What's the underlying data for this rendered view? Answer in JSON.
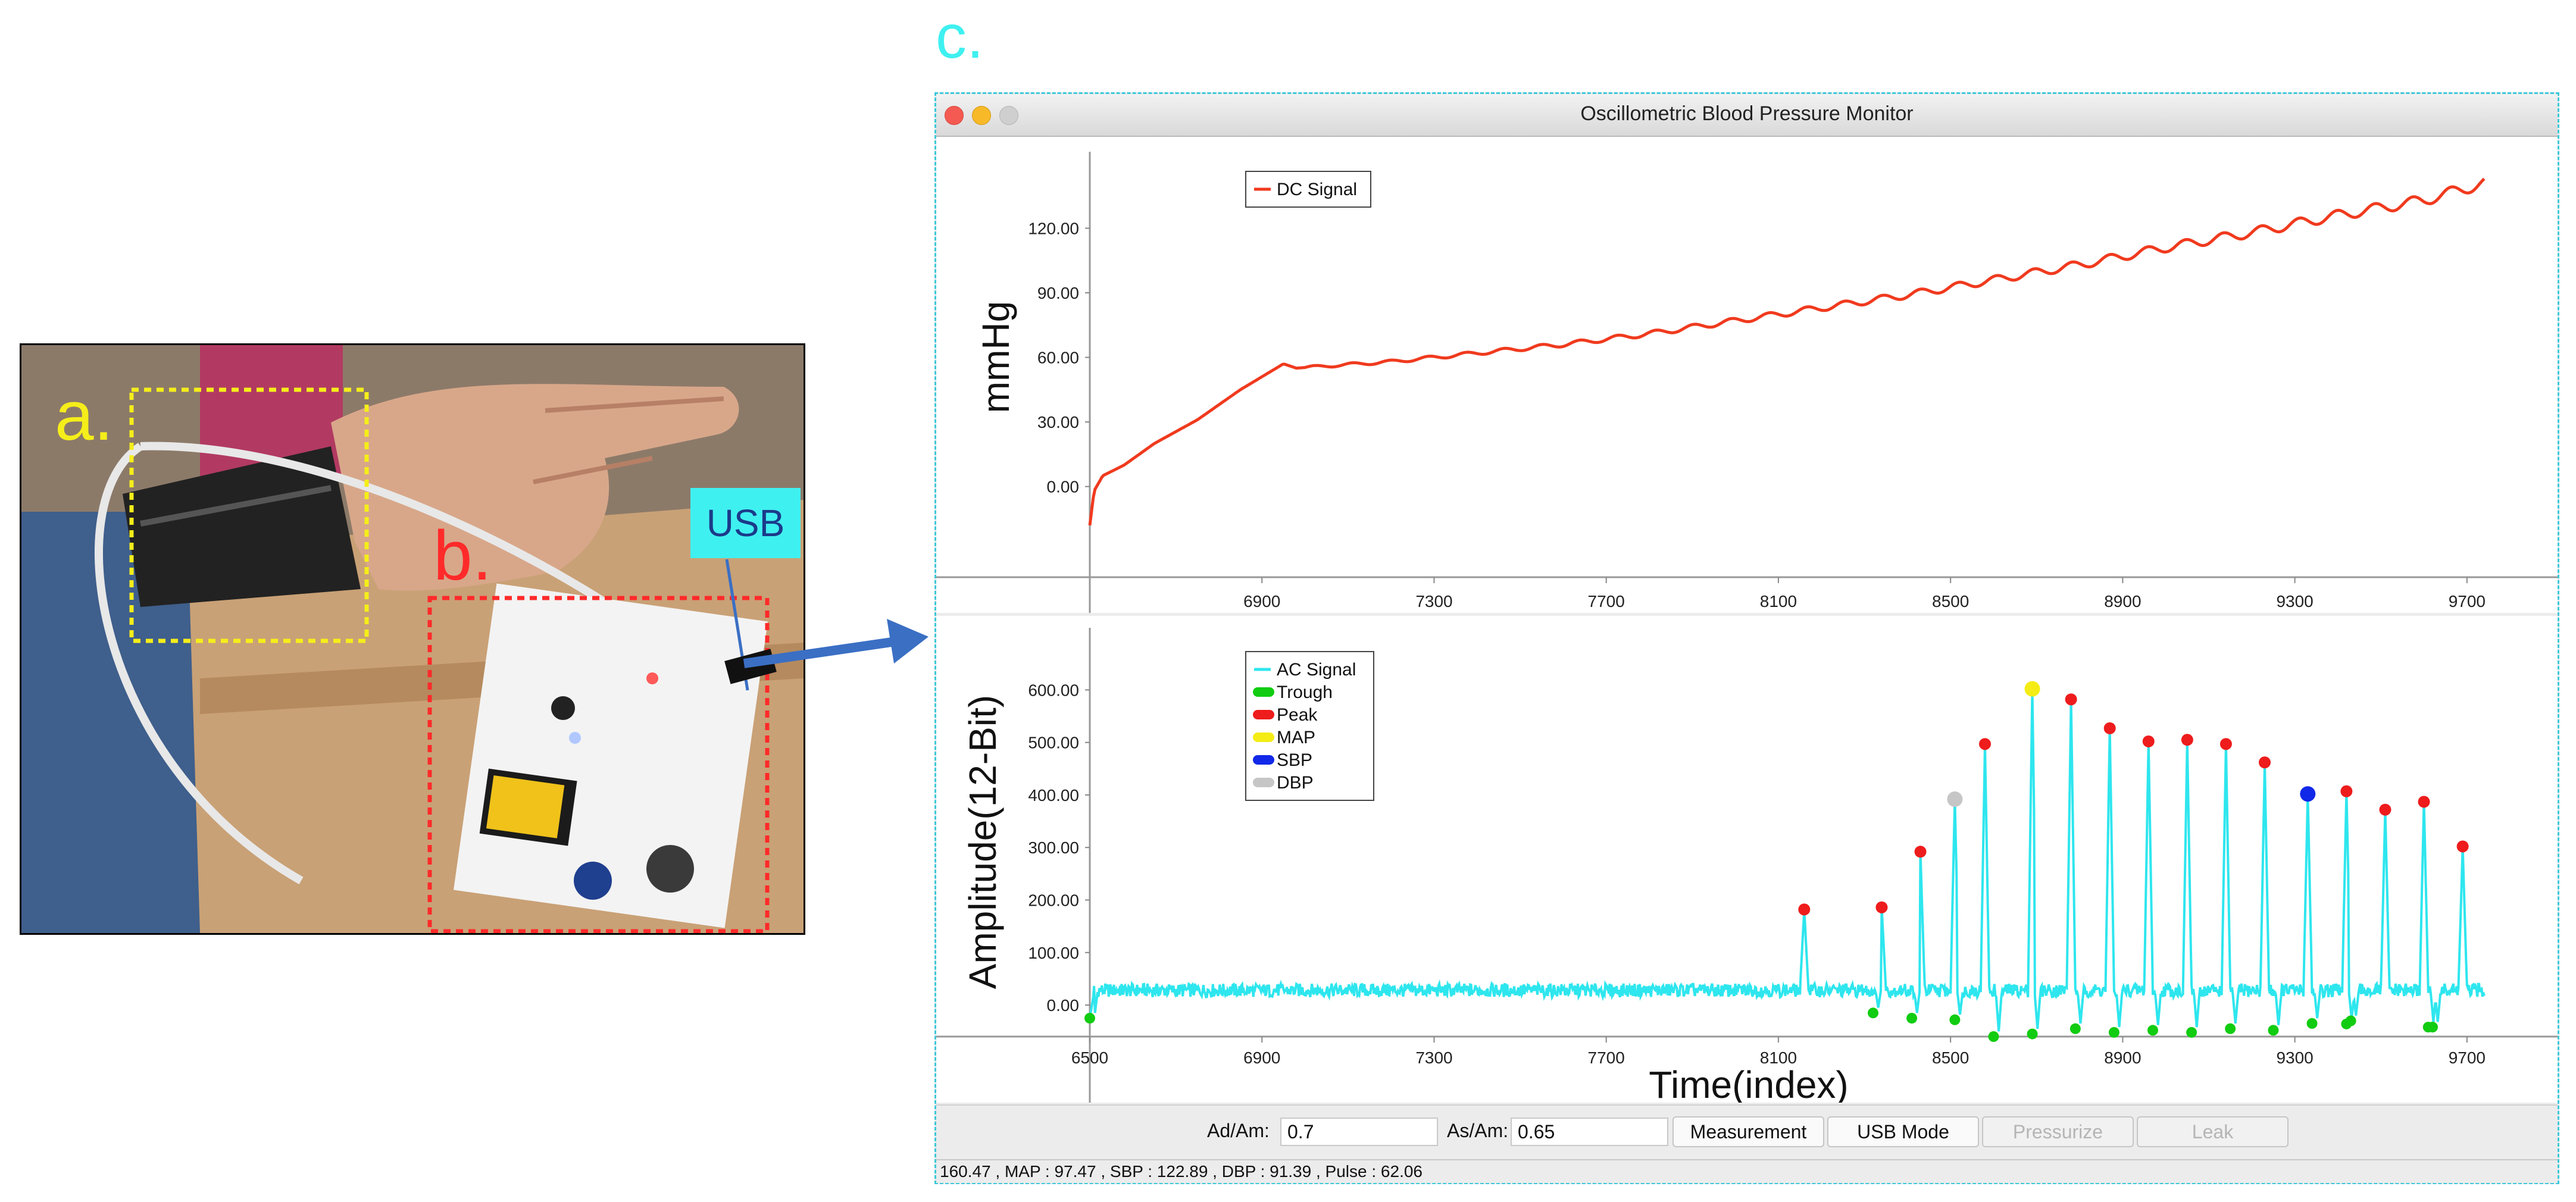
{
  "figure": {
    "panel_c_label": "c.",
    "panel_a_label": "a.",
    "panel_b_label": "b.",
    "usb_label": "USB",
    "colors": {
      "label_a": "#f5ee1a",
      "label_b": "#ff2a2a",
      "label_c": "#3ff0f0",
      "arrow": "#3a6fc4"
    }
  },
  "window": {
    "title": "Oscillometric Blood Pressure Monitor",
    "controls": {
      "ad_am_label": "Ad/Am:",
      "ad_am_value": "0.7",
      "as_am_label": "As/Am:",
      "as_am_value": "0.65",
      "measurement_button": "Measurement",
      "usb_mode_button": "USB Mode",
      "pressurize_button": "Pressurize",
      "leak_button": "Leak"
    },
    "status_text": "160.47 , MAP : 97.47 , SBP : 122.89 , DBP : 91.39 , Pulse : 62.06"
  },
  "chart_data": [
    {
      "type": "line",
      "ylabel": "mmHg",
      "xlabel": "",
      "x_ticks": [
        "6900",
        "7300",
        "7700",
        "8100",
        "8500",
        "8900",
        "9300",
        "9700"
      ],
      "y_ticks": [
        "0.00",
        "30.00",
        "60.00",
        "90.00",
        "120.00"
      ],
      "xlim": [
        6500,
        9750
      ],
      "ylim": [
        -20,
        150
      ],
      "grid": false,
      "legend_position": "top-left",
      "series": [
        {
          "name": "DC Signal",
          "color": "#f03a1e",
          "points": [
            [
              6500,
              -18
            ],
            [
              6510,
              -2
            ],
            [
              6530,
              5
            ],
            [
              6580,
              10
            ],
            [
              6650,
              20
            ],
            [
              6750,
              31
            ],
            [
              6850,
              45
            ],
            [
              6950,
              57
            ],
            [
              6980,
              55
            ],
            [
              7050,
              56
            ],
            [
              7200,
              58
            ],
            [
              7400,
              62
            ],
            [
              7600,
              66
            ],
            [
              7800,
              71
            ],
            [
              8000,
              77
            ],
            [
              8200,
              83
            ],
            [
              8400,
              89
            ],
            [
              8600,
              96
            ],
            [
              8800,
              103
            ],
            [
              9000,
              111
            ],
            [
              9200,
              118
            ],
            [
              9400,
              126
            ],
            [
              9600,
              133
            ],
            [
              9740,
              141
            ]
          ]
        }
      ]
    },
    {
      "type": "line",
      "ylabel": "Amplitude(12-Bit)",
      "xlabel": "Time(index)",
      "x_ticks": [
        "6500",
        "6900",
        "7300",
        "7700",
        "8100",
        "8500",
        "8900",
        "9300",
        "9700"
      ],
      "y_ticks": [
        "0.00",
        "100.00",
        "200.00",
        "300.00",
        "400.00",
        "500.00",
        "600.00"
      ],
      "xlim": [
        6500,
        9750
      ],
      "ylim": [
        -60,
        690
      ],
      "grid": false,
      "legend_position": "top-left",
      "baseline": 28,
      "series": [
        {
          "name": "AC Signal",
          "color": "#2ee6ee"
        },
        {
          "name": "Trough",
          "color": "#11cc11",
          "points": [
            [
              6500,
              -25
            ],
            [
              8320,
              -15
            ],
            [
              8410,
              -25
            ],
            [
              8510,
              -28
            ],
            [
              8600,
              -60
            ],
            [
              8690,
              -55
            ],
            [
              8790,
              -45
            ],
            [
              8880,
              -52
            ],
            [
              8970,
              -48
            ],
            [
              9060,
              -52
            ],
            [
              9150,
              -45
            ],
            [
              9250,
              -48
            ],
            [
              9340,
              -35
            ],
            [
              9420,
              -36
            ],
            [
              9430,
              -30
            ],
            [
              9610,
              -42
            ],
            [
              9620,
              -42
            ]
          ]
        },
        {
          "name": "Peak",
          "color": "#ee1c1c",
          "points": [
            [
              8160,
              182
            ],
            [
              8340,
              186
            ],
            [
              8430,
              292
            ],
            [
              8580,
              497
            ],
            [
              8780,
              582
            ],
            [
              8870,
              527
            ],
            [
              8960,
              502
            ],
            [
              9050,
              505
            ],
            [
              9140,
              497
            ],
            [
              9230,
              462
            ],
            [
              9420,
              407
            ],
            [
              9510,
              372
            ],
            [
              9600,
              387
            ],
            [
              9690,
              302
            ]
          ]
        },
        {
          "name": "MAP",
          "color": "#f4ec14",
          "points": [
            [
              8690,
              602
            ]
          ]
        },
        {
          "name": "SBP",
          "color": "#1128e8",
          "points": [
            [
              9330,
              402
            ]
          ]
        },
        {
          "name": "DBP",
          "color": "#c6c6c6",
          "points": [
            [
              8510,
              392
            ]
          ]
        }
      ]
    }
  ]
}
